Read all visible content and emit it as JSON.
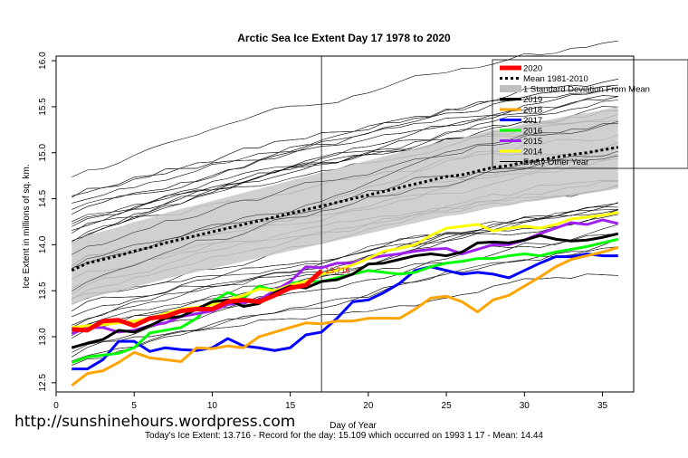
{
  "chart_data": {
    "type": "line",
    "title": "Arctic Sea Ice Extent Day 17 1978 to 2020",
    "xlabel": "Day of Year",
    "ylabel": "Ice Extent in millions of sq. km.",
    "xlim": [
      0,
      37
    ],
    "ylim": [
      12.4,
      16.05
    ],
    "x_ticks": [
      0,
      5,
      10,
      15,
      20,
      25,
      30,
      35
    ],
    "y_ticks": [
      12.5,
      13.0,
      13.5,
      14.0,
      14.5,
      15.0,
      15.5,
      16.0
    ],
    "current_day": 17,
    "grid": false,
    "legend_position": "top-right",
    "current_value_label": "13.716",
    "legend": [
      {
        "label": "2020",
        "color": "#ff0000"
      },
      {
        "label": "Mean 1981-2010",
        "color": "#000000"
      },
      {
        "label": "1 Standard Deviation From Mean",
        "color": "#bfbfbf"
      },
      {
        "label": "2019",
        "color": "#000000"
      },
      {
        "label": "2018",
        "color": "#ffa500"
      },
      {
        "label": "2017",
        "color": "#0000ff"
      },
      {
        "label": "2016",
        "color": "#00ff00"
      },
      {
        "label": "2015",
        "color": "#a020f0"
      },
      {
        "label": "2014",
        "color": "#ffff00"
      },
      {
        "label": "Every Other Year",
        "color": "#000000"
      }
    ],
    "series": [
      {
        "name": "2020",
        "color": "#ff0000",
        "width": 5,
        "x": [
          1,
          2,
          3,
          4,
          5,
          6,
          7,
          8,
          9,
          10,
          11,
          12,
          13,
          14,
          15,
          16,
          17
        ],
        "y": [
          13.08,
          13.07,
          13.17,
          13.18,
          13.12,
          13.2,
          13.22,
          13.28,
          13.3,
          13.3,
          13.38,
          13.4,
          13.38,
          13.45,
          13.53,
          13.56,
          13.716
        ]
      },
      {
        "name": "Mean 1981-2010",
        "color": "#000000",
        "width": 3,
        "dash": "3,3",
        "x": [
          1,
          2,
          3,
          4,
          5,
          6,
          7,
          8,
          9,
          10,
          11,
          12,
          13,
          14,
          15,
          16,
          17,
          18,
          19,
          20,
          21,
          22,
          23,
          24,
          25,
          26,
          27,
          28,
          29,
          30,
          31,
          32,
          33,
          34,
          35,
          36
        ],
        "y": [
          13.72,
          13.8,
          13.84,
          13.88,
          13.93,
          13.97,
          14.02,
          14.06,
          14.1,
          14.14,
          14.18,
          14.22,
          14.26,
          14.3,
          14.34,
          14.38,
          14.42,
          14.46,
          14.5,
          14.54,
          14.58,
          14.62,
          14.66,
          14.7,
          14.74,
          14.76,
          14.8,
          14.84,
          14.86,
          14.9,
          14.92,
          14.95,
          14.98,
          15.0,
          15.03,
          15.06
        ]
      },
      {
        "name": "2019",
        "color": "#000000",
        "width": 3,
        "x": [
          1,
          2,
          3,
          4,
          5,
          6,
          7,
          8,
          9,
          10,
          11,
          12,
          13,
          14,
          15,
          16,
          17,
          18,
          19,
          20,
          21,
          22,
          23,
          24,
          25,
          26,
          27,
          28,
          29,
          30,
          31,
          32,
          33,
          34,
          35,
          36
        ],
        "y": [
          12.88,
          12.93,
          12.97,
          13.07,
          13.05,
          13.12,
          13.2,
          13.22,
          13.3,
          13.38,
          13.4,
          13.33,
          13.36,
          13.48,
          13.55,
          13.53,
          13.6,
          13.62,
          13.68,
          13.79,
          13.8,
          13.84,
          13.88,
          13.9,
          13.88,
          13.92,
          14.02,
          14.03,
          14.02,
          14.05,
          14.1,
          14.06,
          14.04,
          14.05,
          14.08,
          14.12
        ]
      },
      {
        "name": "2018",
        "color": "#ffa500",
        "width": 3,
        "x": [
          1,
          2,
          3,
          4,
          5,
          6,
          7,
          8,
          9,
          10,
          11,
          12,
          13,
          14,
          15,
          16,
          17,
          18,
          19,
          20,
          21,
          22,
          23,
          24,
          25,
          26,
          27,
          28,
          29,
          30,
          31,
          32,
          33,
          34,
          35,
          36
        ],
        "y": [
          12.47,
          12.6,
          12.63,
          12.72,
          12.83,
          12.77,
          12.75,
          12.73,
          12.88,
          12.87,
          12.9,
          12.88,
          13.0,
          13.05,
          13.1,
          13.15,
          13.14,
          13.17,
          13.17,
          13.2,
          13.2,
          13.2,
          13.3,
          13.42,
          13.44,
          13.38,
          13.27,
          13.4,
          13.45,
          13.55,
          13.65,
          13.76,
          13.84,
          13.88,
          13.92,
          13.97
        ]
      },
      {
        "name": "2017",
        "color": "#0000ff",
        "width": 3,
        "x": [
          1,
          2,
          3,
          4,
          5,
          6,
          7,
          8,
          9,
          10,
          11,
          12,
          13,
          14,
          15,
          16,
          17,
          18,
          19,
          20,
          21,
          22,
          23,
          24,
          25,
          26,
          27,
          28,
          29,
          30,
          31,
          32,
          33,
          34,
          35,
          36
        ],
        "y": [
          12.65,
          12.65,
          12.75,
          12.95,
          12.95,
          12.84,
          12.88,
          12.86,
          12.85,
          12.88,
          12.98,
          12.9,
          12.88,
          12.85,
          12.88,
          13.02,
          13.05,
          13.2,
          13.38,
          13.4,
          13.48,
          13.58,
          13.72,
          13.76,
          13.72,
          13.68,
          13.7,
          13.68,
          13.64,
          13.72,
          13.8,
          13.87,
          13.87,
          13.9,
          13.88,
          13.88
        ]
      },
      {
        "name": "2016",
        "color": "#00ff00",
        "width": 3,
        "x": [
          1,
          2,
          3,
          4,
          5,
          6,
          7,
          8,
          9,
          10,
          11,
          12,
          13,
          14,
          15,
          16,
          17,
          18,
          19,
          20,
          21,
          22,
          23,
          24,
          25,
          26,
          27,
          28,
          29,
          30,
          31,
          32,
          33,
          34,
          35,
          36
        ],
        "y": [
          12.72,
          12.78,
          12.8,
          12.82,
          12.88,
          13.04,
          13.07,
          13.1,
          13.2,
          13.38,
          13.48,
          13.42,
          13.55,
          13.5,
          13.58,
          13.6,
          13.6,
          13.64,
          13.68,
          13.72,
          13.7,
          13.68,
          13.7,
          13.76,
          13.8,
          13.82,
          13.85,
          13.85,
          13.88,
          13.9,
          13.88,
          13.92,
          13.95,
          13.98,
          14.02,
          14.06
        ]
      },
      {
        "name": "2015",
        "color": "#a020f0",
        "width": 3,
        "x": [
          1,
          2,
          3,
          4,
          5,
          6,
          7,
          8,
          9,
          10,
          11,
          12,
          13,
          14,
          15,
          16,
          17,
          18,
          19,
          20,
          21,
          22,
          23,
          24,
          25,
          26,
          27,
          28,
          29,
          30,
          31,
          32,
          33,
          34,
          35,
          36
        ],
        "y": [
          13.03,
          13.1,
          13.1,
          13.05,
          13.07,
          13.12,
          13.15,
          13.22,
          13.25,
          13.28,
          13.35,
          13.37,
          13.4,
          13.5,
          13.6,
          13.76,
          13.75,
          13.8,
          13.8,
          13.85,
          13.88,
          13.9,
          13.93,
          13.95,
          13.96,
          13.9,
          13.95,
          14.0,
          14.0,
          14.05,
          14.12,
          14.18,
          14.24,
          14.22,
          14.27,
          14.23
        ]
      },
      {
        "name": "2014",
        "color": "#ffff00",
        "width": 3,
        "x": [
          1,
          2,
          3,
          4,
          5,
          6,
          7,
          8,
          9,
          10,
          11,
          12,
          13,
          14,
          15,
          16,
          17,
          18,
          19,
          20,
          21,
          22,
          23,
          24,
          25,
          26,
          27,
          28,
          29,
          30,
          31,
          32,
          33,
          34,
          35,
          36
        ],
        "y": [
          13.1,
          13.12,
          13.13,
          13.15,
          13.17,
          13.2,
          13.25,
          13.3,
          13.32,
          13.35,
          13.4,
          13.45,
          13.52,
          13.5,
          13.56,
          13.6,
          13.68,
          13.72,
          13.78,
          13.85,
          13.93,
          13.96,
          14.0,
          14.1,
          14.18,
          14.2,
          14.22,
          14.15,
          14.18,
          14.2,
          14.18,
          14.22,
          14.28,
          14.3,
          14.32,
          14.35
        ]
      }
    ]
  },
  "footer": {
    "url": "http://sunshinehours.wordpress.com",
    "summary": "Today's Ice Extent: 13.716  - Record for the day: 15.109 which occurred on 1993 1 17  - Mean: 14.44"
  }
}
